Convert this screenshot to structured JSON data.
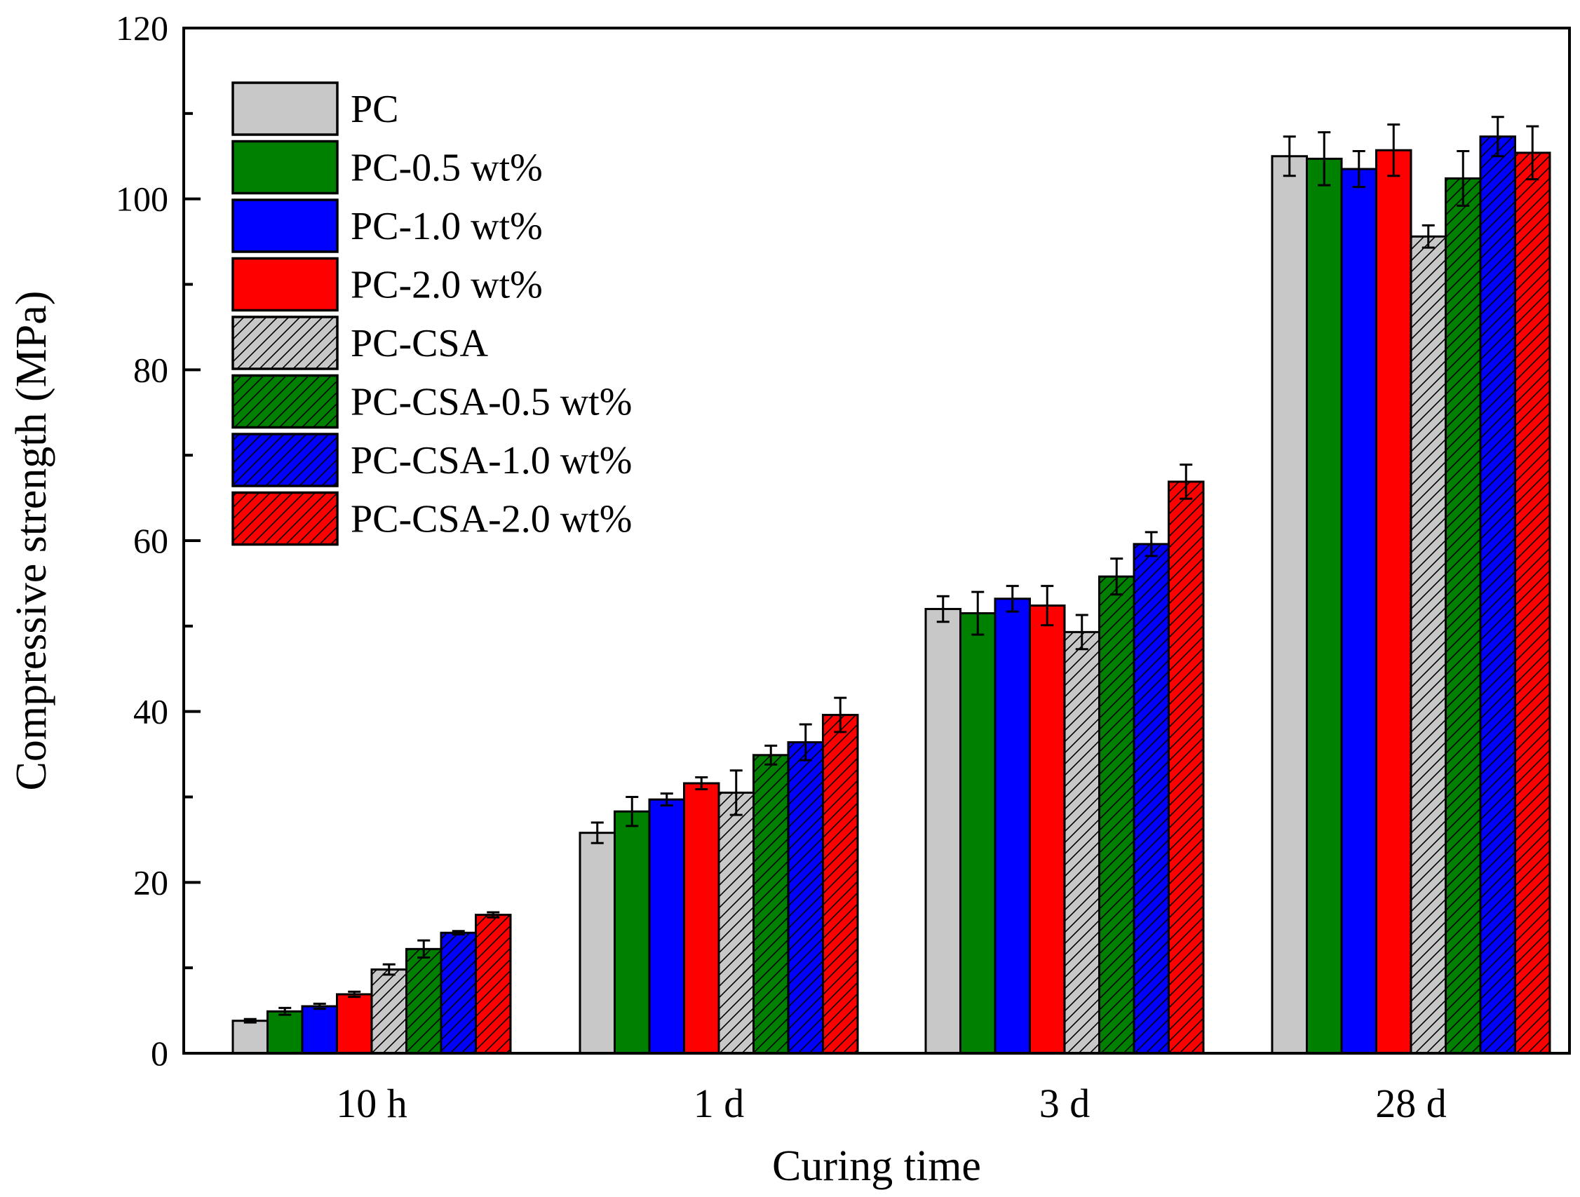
{
  "chart_data": {
    "type": "bar",
    "title": "",
    "xlabel": "Curing time",
    "ylabel": "Compressive strength (MPa)",
    "ylim": [
      0,
      120
    ],
    "yticks": [
      0,
      20,
      40,
      60,
      80,
      100,
      120
    ],
    "grid": false,
    "legend_position": "top-left",
    "categories": [
      "10 h",
      "1 d",
      "3 d",
      "28 d"
    ],
    "series": [
      {
        "name": "PC",
        "color": "#c8c8c8",
        "hatched": false,
        "values": [
          3.8,
          25.8,
          52.0,
          105.0
        ],
        "errors": [
          0.2,
          1.2,
          1.5,
          2.3
        ]
      },
      {
        "name": "PC-0.5 wt%",
        "color": "#008000",
        "hatched": false,
        "values": [
          4.9,
          28.3,
          51.5,
          104.7
        ],
        "errors": [
          0.4,
          1.7,
          2.5,
          3.1
        ]
      },
      {
        "name": "PC-1.0 wt%",
        "color": "#0000ff",
        "hatched": false,
        "values": [
          5.5,
          29.7,
          53.2,
          103.5
        ],
        "errors": [
          0.3,
          0.7,
          1.5,
          2.1
        ]
      },
      {
        "name": "PC-2.0 wt%",
        "color": "#ff0000",
        "hatched": false,
        "values": [
          6.9,
          31.6,
          52.4,
          105.7
        ],
        "errors": [
          0.3,
          0.7,
          2.3,
          3.0
        ]
      },
      {
        "name": "PC-CSA",
        "color": "#c8c8c8",
        "hatched": true,
        "values": [
          9.8,
          30.5,
          49.3,
          95.6
        ],
        "errors": [
          0.6,
          2.6,
          2.0,
          1.3
        ]
      },
      {
        "name": "PC-CSA-0.5 wt%",
        "color": "#008000",
        "hatched": true,
        "values": [
          12.2,
          34.9,
          55.8,
          102.4
        ],
        "errors": [
          1.0,
          1.1,
          2.1,
          3.2
        ]
      },
      {
        "name": "PC-CSA-1.0 wt%",
        "color": "#0000ff",
        "hatched": true,
        "values": [
          14.1,
          36.4,
          59.6,
          107.3
        ],
        "errors": [
          0.2,
          2.1,
          1.4,
          2.3
        ]
      },
      {
        "name": "PC-CSA-2.0 wt%",
        "color": "#ff0000",
        "hatched": true,
        "values": [
          16.2,
          39.6,
          66.9,
          105.4
        ],
        "errors": [
          0.3,
          2.0,
          2.0,
          3.1
        ]
      }
    ]
  }
}
